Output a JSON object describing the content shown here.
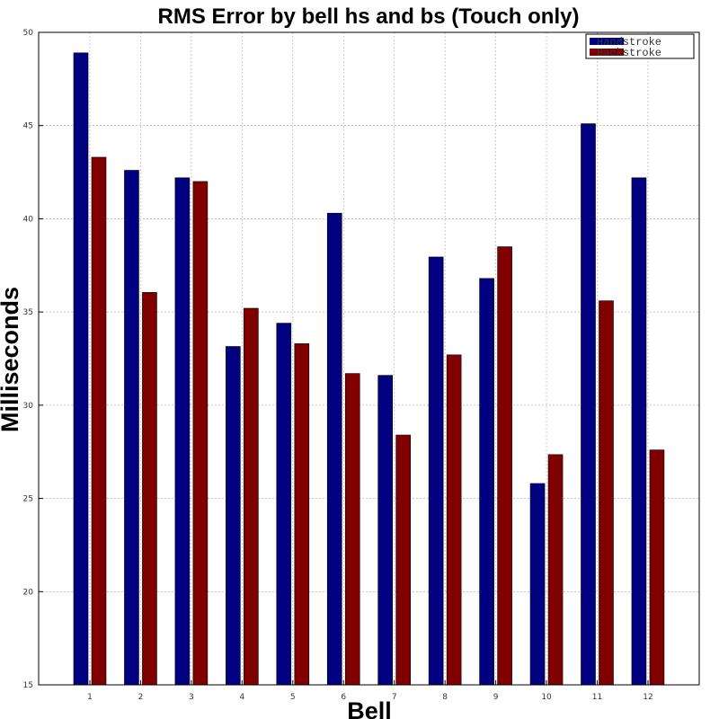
{
  "chart_data": {
    "type": "bar",
    "title": "RMS Error by bell hs and bs (Touch only)",
    "xlabel": "Bell",
    "ylabel": "Milliseconds",
    "categories": [
      "1",
      "2",
      "3",
      "4",
      "5",
      "6",
      "7",
      "8",
      "9",
      "10",
      "11",
      "12"
    ],
    "series": [
      {
        "name": "Handstroke",
        "color": "#000080",
        "values": [
          48.9,
          42.6,
          42.2,
          33.15,
          34.4,
          40.3,
          31.6,
          37.95,
          36.8,
          25.8,
          45.1,
          42.2
        ]
      },
      {
        "name": "Backstroke",
        "color": "#800000",
        "values": [
          43.3,
          36.05,
          42.0,
          35.2,
          33.3,
          31.7,
          28.4,
          32.7,
          38.5,
          27.35,
          35.6,
          27.6
        ]
      }
    ],
    "ylim": [
      15,
      50
    ],
    "yticks": [
      "15",
      "20",
      "25",
      "30",
      "35",
      "40",
      "45",
      "50"
    ],
    "grid": true,
    "legend_position": "top-right"
  }
}
